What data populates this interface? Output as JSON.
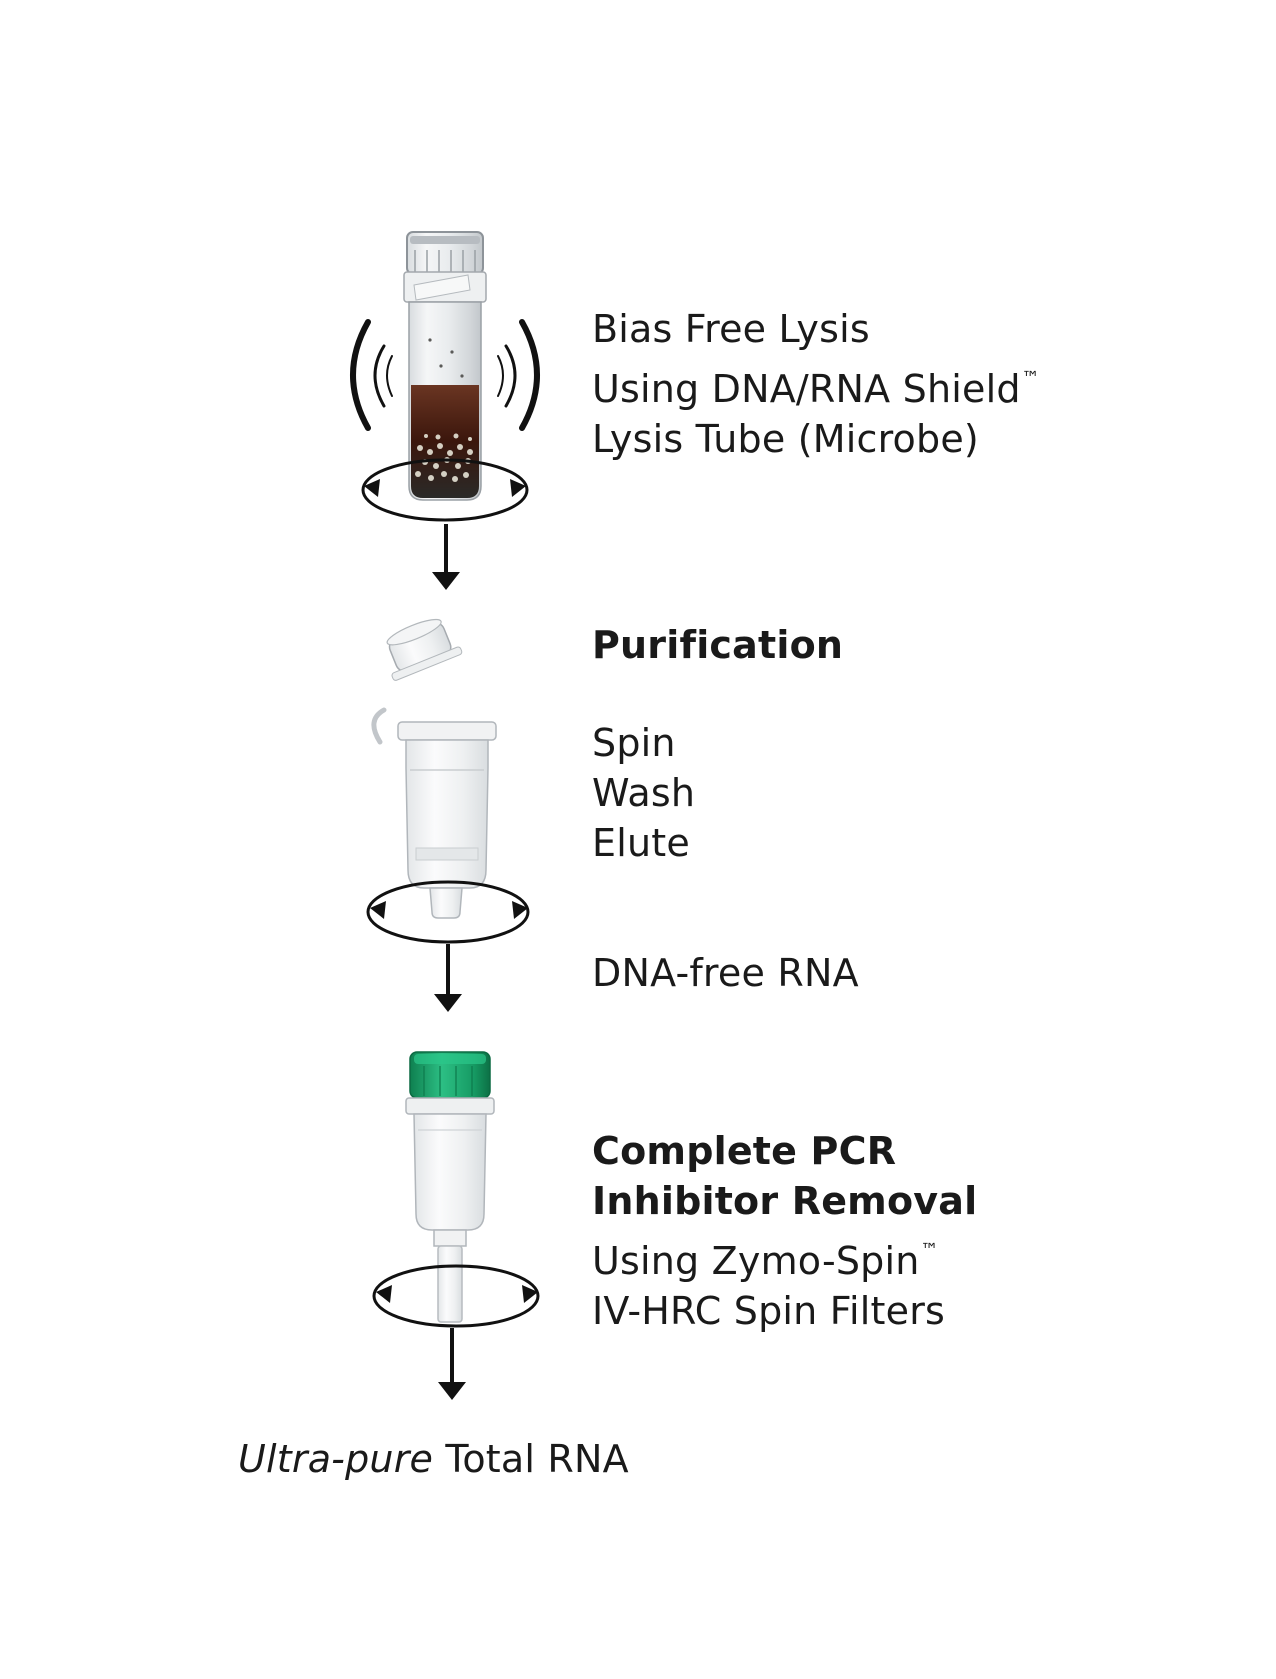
{
  "steps": [
    {
      "lines": [
        "Bias Free Lysis",
        "Using DNA/RNA Shield",
        "Lysis Tube (Microbe)"
      ],
      "trademark": "™"
    },
    {
      "title": "Purification",
      "lines": [
        "Spin",
        "Wash",
        "Elute"
      ],
      "note": "DNA-free RNA"
    },
    {
      "title_lines": [
        "Complete PCR",
        "Inhibitor Removal"
      ],
      "lines": [
        "Using Zymo-Spin",
        "IV-HRC Spin Filters"
      ],
      "trademark": "™"
    }
  ],
  "result": {
    "italic": "Ultra-pure",
    "text": "Total RNA"
  },
  "colors": {
    "cap_green": "#1aa06a",
    "lysate_brown": "#4a1e12",
    "arrow": "#111111"
  }
}
